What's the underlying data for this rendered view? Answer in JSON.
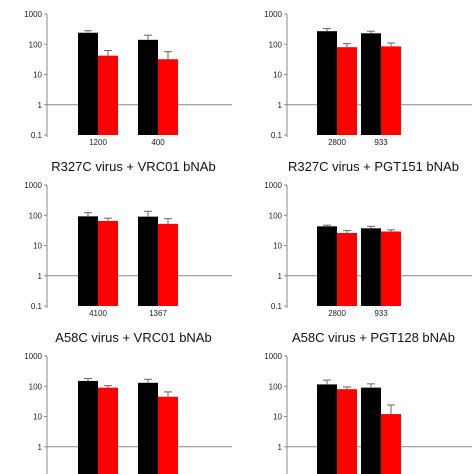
{
  "colors": {
    "series_a": "#000000",
    "series_b": "#ff0000",
    "axis": "#888888",
    "error_bar": "#666666"
  },
  "y_ticks": [
    "1000",
    "100",
    "10",
    "1",
    "0.1"
  ],
  "chart_data": [
    {
      "type": "bar",
      "title": "",
      "scale": "log",
      "ylim": [
        0.1,
        1000
      ],
      "reference_line": 1,
      "categories": [
        "1200",
        "400"
      ],
      "series": [
        {
          "values": [
            240,
            140
          ],
          "errors": [
            40,
            60
          ]
        },
        {
          "values": [
            42,
            32
          ],
          "errors": [
            20,
            25
          ]
        }
      ]
    },
    {
      "type": "bar",
      "title": "",
      "scale": "log",
      "ylim": [
        0.1,
        1000
      ],
      "reference_line": 1,
      "categories": [
        "2800",
        "933"
      ],
      "series": [
        {
          "values": [
            270,
            230
          ],
          "errors": [
            60,
            40
          ]
        },
        {
          "values": [
            80,
            85
          ],
          "errors": [
            25,
            25
          ]
        }
      ]
    },
    {
      "type": "bar",
      "title": "R327C virus + VRC01 bNAb",
      "scale": "log",
      "ylim": [
        0.1,
        1000
      ],
      "reference_line": 1,
      "categories": [
        "4100",
        "1367"
      ],
      "series": [
        {
          "values": [
            92,
            90
          ],
          "errors": [
            30,
            45
          ]
        },
        {
          "values": [
            65,
            52
          ],
          "errors": [
            15,
            25
          ]
        }
      ]
    },
    {
      "type": "bar",
      "title": "R327C virus + PGT151 bNAb",
      "scale": "log",
      "ylim": [
        0.1,
        1000
      ],
      "reference_line": 1,
      "categories": [
        "2800",
        "933"
      ],
      "series": [
        {
          "values": [
            43,
            37
          ],
          "errors": [
            4,
            6
          ]
        },
        {
          "values": [
            26,
            29
          ],
          "errors": [
            5,
            4
          ]
        }
      ]
    },
    {
      "type": "bar",
      "title": "A58C virus + VRC01 bNAb",
      "scale": "log",
      "ylim": [
        0.1,
        1000
      ],
      "reference_line": 1,
      "categories": [
        "",
        ""
      ],
      "series": [
        {
          "values": [
            150,
            130
          ],
          "errors": [
            30,
            40
          ]
        },
        {
          "values": [
            90,
            45
          ],
          "errors": [
            15,
            20
          ]
        }
      ]
    },
    {
      "type": "bar",
      "title": "A58C virus + PGT128 bNAb",
      "scale": "log",
      "ylim": [
        0.1,
        1000
      ],
      "reference_line": 1,
      "categories": [
        "",
        ""
      ],
      "series": [
        {
          "values": [
            115,
            90
          ],
          "errors": [
            45,
            30
          ]
        },
        {
          "values": [
            80,
            12
          ],
          "errors": [
            15,
            12
          ]
        }
      ]
    }
  ]
}
